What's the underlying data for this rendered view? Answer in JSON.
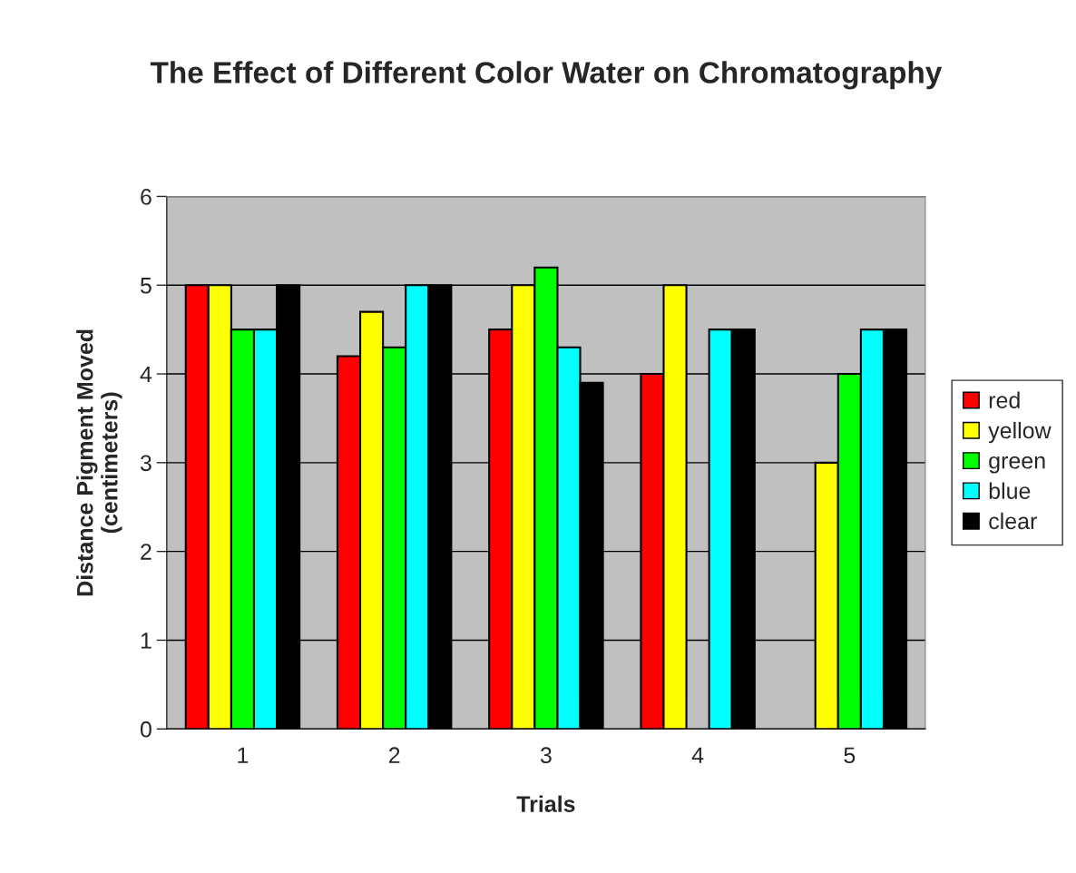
{
  "chart_data": {
    "type": "bar",
    "title": "The Effect of Different Color Water on Chromatography",
    "xlabel": "Trials",
    "ylabel": "Distance Pigment Moved (centimeters)",
    "categories": [
      "1",
      "2",
      "3",
      "4",
      "5"
    ],
    "series": [
      {
        "name": "red",
        "color": "#ff0000",
        "values": [
          5,
          4.2,
          4.5,
          4,
          null
        ]
      },
      {
        "name": "yellow",
        "color": "#ffff00",
        "values": [
          5,
          4.7,
          5,
          5,
          3
        ]
      },
      {
        "name": "green",
        "color": "#00ff00",
        "values": [
          4.5,
          4.3,
          5.2,
          null,
          4
        ]
      },
      {
        "name": "blue",
        "color": "#00ffff",
        "values": [
          4.5,
          5,
          4.3,
          4.5,
          4.5
        ]
      },
      {
        "name": "clear",
        "color": "#000000",
        "values": [
          5,
          5,
          3.9,
          4.5,
          4.5
        ]
      }
    ],
    "ylim": [
      0,
      6
    ],
    "yticks": [
      0,
      1,
      2,
      3,
      4,
      5,
      6
    ],
    "grid": "y",
    "legend": "right"
  }
}
